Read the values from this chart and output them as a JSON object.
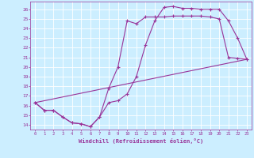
{
  "xlabel": "Windchill (Refroidissement éolien,°C)",
  "bg_color": "#cceeff",
  "line_color": "#993399",
  "grid_color": "#ffffff",
  "xlim": [
    -0.5,
    23.5
  ],
  "ylim": [
    13.5,
    26.8
  ],
  "yticks": [
    14,
    15,
    16,
    17,
    18,
    19,
    20,
    21,
    22,
    23,
    24,
    25,
    26
  ],
  "xticks": [
    0,
    1,
    2,
    3,
    4,
    5,
    6,
    7,
    8,
    9,
    10,
    11,
    12,
    13,
    14,
    15,
    16,
    17,
    18,
    19,
    20,
    21,
    22,
    23
  ],
  "line1_x": [
    0,
    1,
    2,
    3,
    4,
    5,
    6,
    7,
    8,
    9,
    10,
    11,
    12,
    13,
    14,
    15,
    16,
    17,
    18,
    19,
    20,
    21,
    22,
    23
  ],
  "line1_y": [
    16.3,
    15.5,
    15.5,
    14.8,
    14.2,
    14.1,
    13.8,
    14.8,
    17.8,
    20.0,
    24.8,
    24.5,
    25.2,
    25.2,
    25.2,
    25.3,
    25.3,
    25.3,
    25.3,
    25.2,
    25.0,
    21.0,
    20.9,
    20.8
  ],
  "line2_x": [
    0,
    1,
    2,
    3,
    4,
    5,
    6,
    7,
    8,
    9,
    10,
    11,
    12,
    13,
    14,
    15,
    16,
    17,
    18,
    19,
    20,
    21,
    22,
    23
  ],
  "line2_y": [
    16.3,
    15.5,
    15.5,
    14.8,
    14.2,
    14.1,
    13.8,
    14.8,
    16.3,
    16.5,
    17.2,
    19.0,
    22.3,
    24.8,
    26.2,
    26.3,
    26.1,
    26.1,
    26.0,
    26.0,
    26.0,
    24.8,
    23.0,
    20.8
  ],
  "line3_x": [
    0,
    23
  ],
  "line3_y": [
    16.3,
    20.8
  ]
}
